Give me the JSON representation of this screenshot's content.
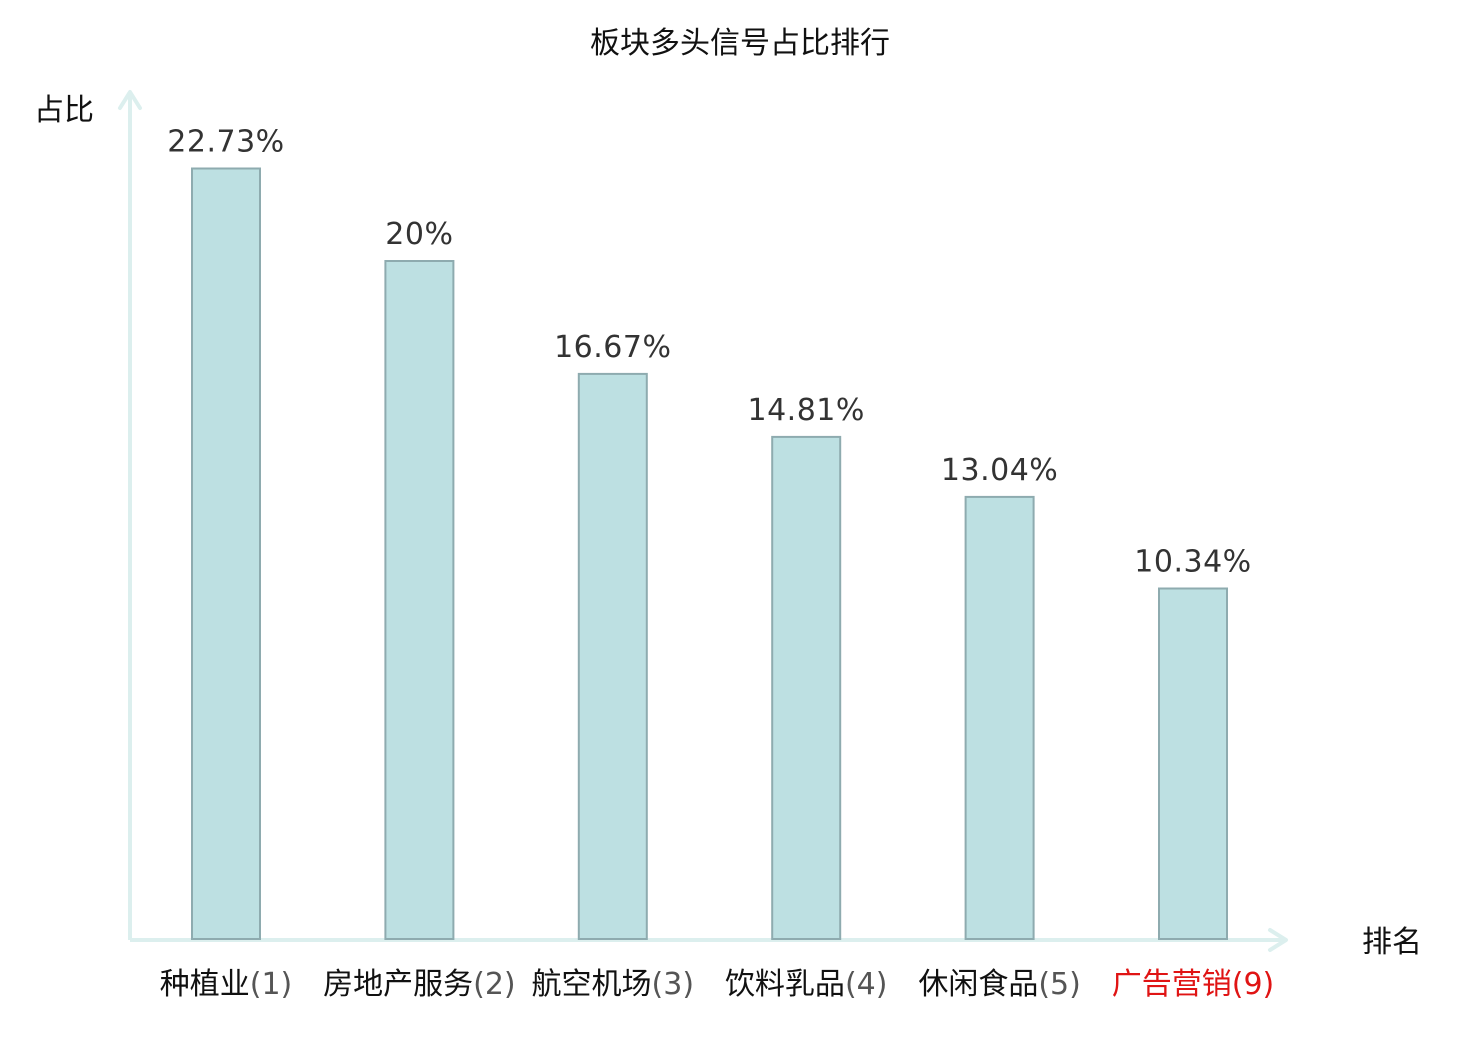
{
  "chart_data": {
    "type": "bar",
    "title": "板块多头信号占比排行",
    "ylabel": "占比",
    "xlabel": "排名",
    "categories": [
      {
        "name": "种植业",
        "rank": "(1)",
        "highlight": false
      },
      {
        "name": "房地产服务",
        "rank": "(2)",
        "highlight": false
      },
      {
        "name": "航空机场",
        "rank": "(3)",
        "highlight": false
      },
      {
        "name": "饮料乳品",
        "rank": "(4)",
        "highlight": false
      },
      {
        "name": "休闲食品",
        "rank": "(5)",
        "highlight": false
      },
      {
        "name": "广告营销",
        "rank": "(9)",
        "highlight": true
      }
    ],
    "values": [
      22.73,
      20,
      16.67,
      14.81,
      13.04,
      10.34
    ],
    "value_labels": [
      "22.73%",
      "20%",
      "16.67%",
      "14.81%",
      "13.04%",
      "10.34%"
    ],
    "unit": "%",
    "ylim": [
      0,
      25.4
    ],
    "grid": false,
    "legend": "none"
  },
  "colors": {
    "bar_fill": "#bde0e2",
    "bar_stroke": "#8eabaf",
    "axis": "#dcefee",
    "text": "#111111",
    "value_text": "#333333",
    "rank_text": "#555555",
    "highlight": "#e01414"
  }
}
